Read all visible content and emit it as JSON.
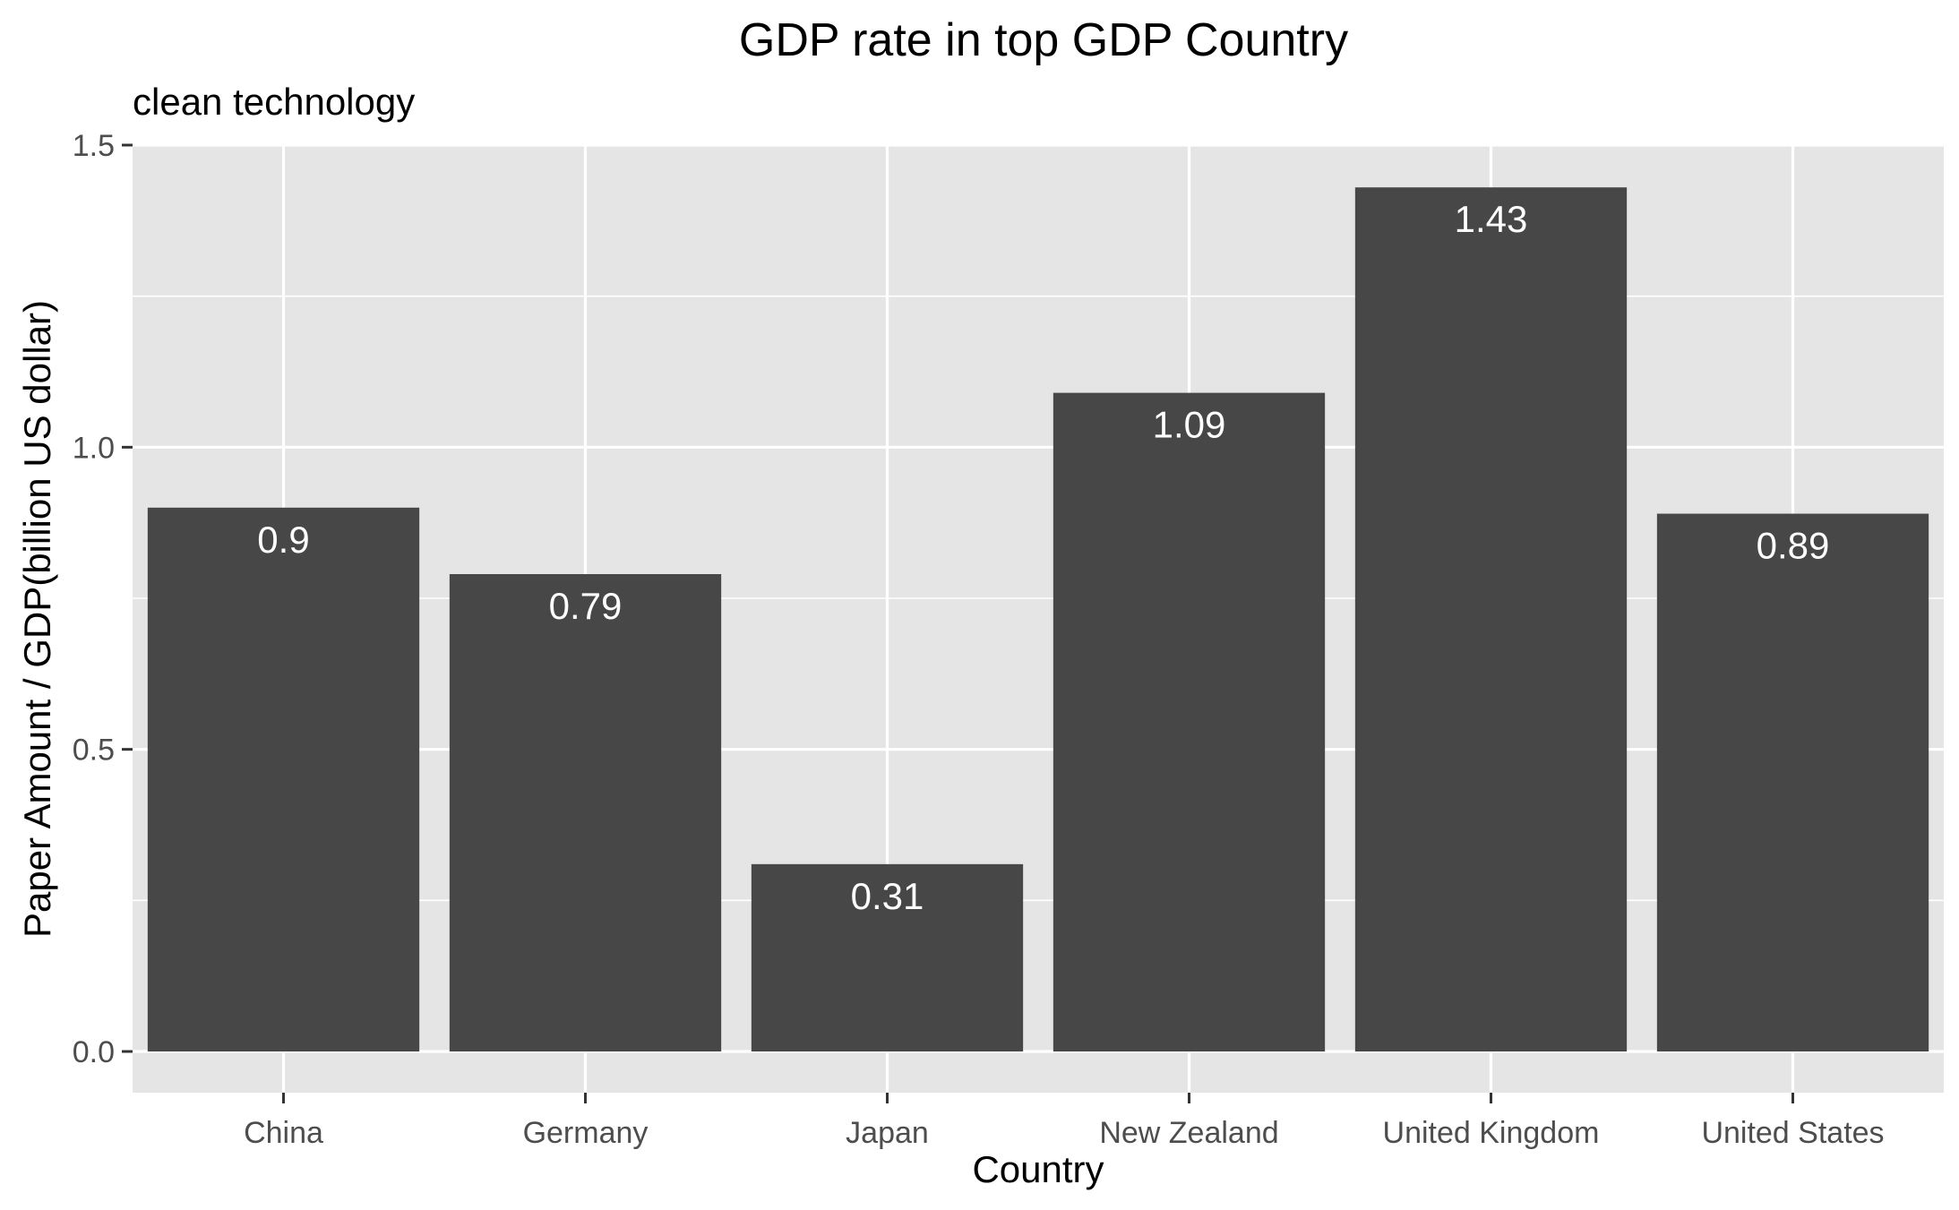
{
  "chart_data": {
    "type": "bar",
    "title": "GDP rate in top GDP Country",
    "subtitle": "clean technology",
    "xlabel": "Country",
    "ylabel": "Paper Amount / GDP(billion US dollar)",
    "categories": [
      "China",
      "Germany",
      "Japan",
      "New Zealand",
      "United Kingdom",
      "United States"
    ],
    "values": [
      0.9,
      0.79,
      0.31,
      1.09,
      1.43,
      0.89
    ],
    "value_labels": [
      "0.9",
      "0.79",
      "0.31",
      "1.09",
      "1.43",
      "0.89"
    ],
    "ylim": [
      -0.07,
      1.5
    ],
    "yticks": [
      0.0,
      0.5,
      1.0,
      1.5
    ],
    "ytick_labels": [
      "0.0",
      "0.5",
      "1.0",
      "1.5"
    ],
    "grid": true,
    "legend": "none",
    "colors": {
      "panel": "#e5e5e5",
      "grid": "#ffffff",
      "bar": "#474747",
      "label": "#ffffff",
      "tick": "#4d4d4d"
    }
  }
}
